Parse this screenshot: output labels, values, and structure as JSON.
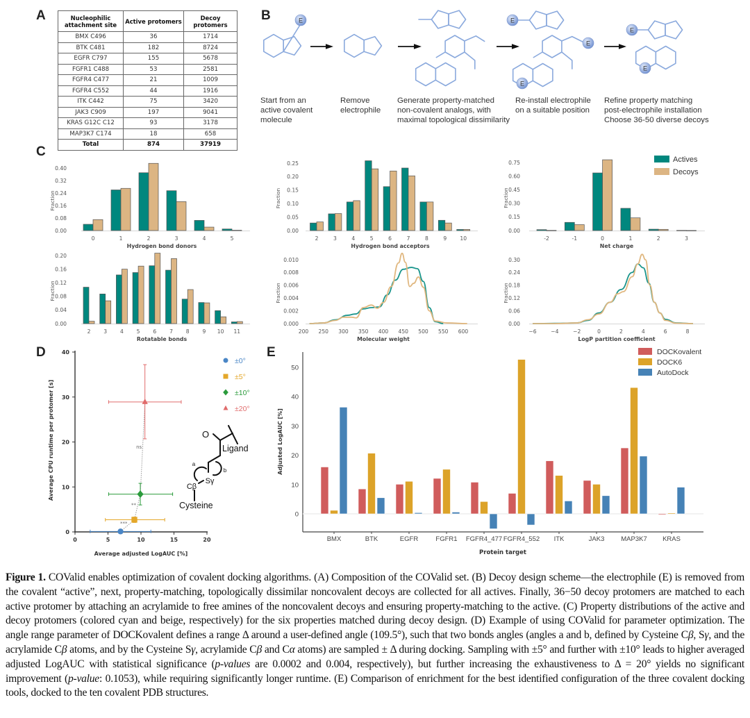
{
  "panel_labels": {
    "a": "A",
    "b": "B",
    "c": "C",
    "d": "D",
    "e": "E"
  },
  "table": {
    "headers": [
      "Nucleophilic attachment site",
      "Active protomers",
      "Decoy protomers"
    ],
    "rows": [
      [
        "BMX C496",
        "36",
        "1714"
      ],
      [
        "BTK C481",
        "182",
        "8724"
      ],
      [
        "EGFR C797",
        "155",
        "5678"
      ],
      [
        "FGFR1 C488",
        "53",
        "2581"
      ],
      [
        "FGFR4 C477",
        "21",
        "1009"
      ],
      [
        "FGFR4 C552",
        "44",
        "1916"
      ],
      [
        "ITK C442",
        "75",
        "3420"
      ],
      [
        "JAK3 C909",
        "197",
        "9041"
      ],
      [
        "KRAS G12C C12",
        "93",
        "3178"
      ],
      [
        "MAP3K7  C174",
        "18",
        "658"
      ]
    ],
    "total": [
      "Total",
      "874",
      "37919"
    ]
  },
  "scheme": {
    "ring_color": "#8aa9dd",
    "electrophile_label": "E",
    "steps": [
      [
        "Start from an",
        "active covalent",
        "molecule"
      ],
      [
        "Remove",
        "electrophile"
      ],
      [
        "Generate property-matched",
        "non-covalent analogs, with",
        "maximal topological dissimilarity"
      ],
      [
        "Re-install electrophile",
        "on a suitable position"
      ],
      [
        "Refine property matching",
        "post-electrophile installation",
        "Choose 36-50 diverse decoys"
      ]
    ]
  },
  "chart_data": [
    {
      "type": "bar",
      "xlabel": "Hydrogen bond donors",
      "ylabel": "Fraction",
      "categories": [
        "0",
        "1",
        "2",
        "3",
        "4",
        "5"
      ],
      "yticks": [
        "0.00",
        "0.08",
        "0.16",
        "0.24",
        "0.32",
        "0.40"
      ],
      "series": [
        {
          "name": "Actives",
          "color": "#00877e",
          "values": [
            0.04,
            0.26,
            0.37,
            0.255,
            0.065,
            0.01
          ]
        },
        {
          "name": "Decoys",
          "color": "#dcb583",
          "values": [
            0.07,
            0.27,
            0.43,
            0.185,
            0.022,
            0.002
          ]
        }
      ]
    },
    {
      "type": "bar",
      "xlabel": "Rotatable bonds",
      "ylabel": "Fraction",
      "categories": [
        "2",
        "3",
        "4",
        "5",
        "6",
        "7",
        "8",
        "9",
        "10",
        "11"
      ],
      "yticks": [
        "0.00",
        "0.04",
        "0.08",
        "0.12",
        "0.16",
        "0.20"
      ],
      "series": [
        {
          "name": "Actives",
          "color": "#00877e",
          "values": [
            0.107,
            0.087,
            0.143,
            0.15,
            0.17,
            0.157,
            0.072,
            0.062,
            0.038,
            0.005
          ]
        },
        {
          "name": "Decoys",
          "color": "#dcb583",
          "values": [
            0.007,
            0.067,
            0.16,
            0.169,
            0.207,
            0.191,
            0.1,
            0.061,
            0.02,
            0.006
          ]
        }
      ]
    },
    {
      "type": "bar",
      "xlabel": "Hydrogen bond acceptors",
      "ylabel": "Fraction",
      "categories": [
        "2",
        "3",
        "4",
        "5",
        "6",
        "7",
        "8",
        "9",
        "10"
      ],
      "yticks": [
        "0.00",
        "0.05",
        "0.10",
        "0.15",
        "0.20",
        "0.25"
      ],
      "series": [
        {
          "name": "Actives",
          "color": "#00877e",
          "values": [
            0.028,
            0.062,
            0.106,
            0.259,
            0.163,
            0.232,
            0.106,
            0.038,
            0.004
          ]
        },
        {
          "name": "Decoys",
          "color": "#dcb583",
          "values": [
            0.032,
            0.063,
            0.111,
            0.229,
            0.221,
            0.203,
            0.106,
            0.028,
            0.004
          ]
        }
      ]
    },
    {
      "type": "line",
      "xlabel": "Molecular weight",
      "ylabel": "Fraction",
      "xticks": [
        "200",
        "250",
        "300",
        "350",
        "400",
        "450",
        "500",
        "550",
        "600"
      ],
      "yticks": [
        "0.000",
        "0.002",
        "0.004",
        "0.006",
        "0.008",
        "0.010"
      ],
      "series": [
        {
          "name": "Actives",
          "color": "#1a958c",
          "points": [
            [
              215,
              0
            ],
            [
              250,
              0.0001
            ],
            [
              280,
              0.0006
            ],
            [
              310,
              0.0013
            ],
            [
              330,
              0.0015
            ],
            [
              350,
              0.0023
            ],
            [
              370,
              0.0025
            ],
            [
              390,
              0.0026
            ],
            [
              410,
              0.0045
            ],
            [
              430,
              0.0068
            ],
            [
              450,
              0.0085
            ],
            [
              470,
              0.0088
            ],
            [
              485,
              0.0086
            ],
            [
              500,
              0.0066
            ],
            [
              515,
              0.0025
            ],
            [
              530,
              0.0003
            ],
            [
              550,
              0
            ]
          ]
        },
        {
          "name": "Decoys",
          "color": "#e0b77f",
          "points": [
            [
              215,
              0
            ],
            [
              250,
              0.0001
            ],
            [
              280,
              0.0005
            ],
            [
              300,
              0.001
            ],
            [
              320,
              0.001
            ],
            [
              332,
              0.0009
            ],
            [
              350,
              0.0025
            ],
            [
              370,
              0.0029
            ],
            [
              385,
              0.0024
            ],
            [
              400,
              0.0033
            ],
            [
              420,
              0.0058
            ],
            [
              438,
              0.0095
            ],
            [
              447,
              0.011
            ],
            [
              455,
              0.0096
            ],
            [
              466,
              0.0058
            ],
            [
              476,
              0.0063
            ],
            [
              488,
              0.0073
            ],
            [
              500,
              0.0057
            ],
            [
              515,
              0.002
            ],
            [
              530,
              0.0004
            ],
            [
              560,
              0.0001
            ],
            [
              610,
              0
            ]
          ]
        }
      ]
    },
    {
      "type": "bar",
      "xlabel": "Net charge",
      "ylabel": "Fraction",
      "categories": [
        "-2",
        "-1",
        "0",
        "1",
        "2",
        "3"
      ],
      "yticks": [
        "0.00",
        "0.15",
        "0.30",
        "0.45",
        "0.60",
        "0.75"
      ],
      "legend": {
        "position": "top-right",
        "entries": [
          "Actives",
          "Decoys"
        ]
      },
      "series": [
        {
          "name": "Actives",
          "color": "#00877e",
          "values": [
            0.01,
            0.09,
            0.635,
            0.245,
            0.015,
            0.002
          ]
        },
        {
          "name": "Decoys",
          "color": "#dcb583",
          "values": [
            0.002,
            0.065,
            0.78,
            0.14,
            0.013,
            0.001
          ]
        }
      ]
    },
    {
      "type": "line",
      "xlabel": "LogP partition coefficient",
      "ylabel": "Fraction",
      "xticks": [
        "−6",
        "−4",
        "−2",
        "0",
        "2",
        "4",
        "6",
        "8"
      ],
      "yticks": [
        "0.00",
        "0.06",
        "0.12",
        "0.18",
        "0.24",
        "0.30"
      ],
      "series": [
        {
          "name": "Actives",
          "color": "#1a958c",
          "points": [
            [
              -6,
              0
            ],
            [
              -4,
              0.001
            ],
            [
              -2,
              0.003
            ],
            [
              -1,
              0.015
            ],
            [
              0,
              0.05
            ],
            [
              1,
              0.1
            ],
            [
              2,
              0.16
            ],
            [
              3,
              0.24
            ],
            [
              3.5,
              0.28
            ],
            [
              4,
              0.262
            ],
            [
              4.5,
              0.19
            ],
            [
              5,
              0.1
            ],
            [
              5.5,
              0.05
            ],
            [
              6,
              0.02
            ],
            [
              7,
              0.003
            ],
            [
              8.5,
              0
            ]
          ]
        },
        {
          "name": "Decoys",
          "color": "#e0b77f",
          "points": [
            [
              -6,
              0
            ],
            [
              -4,
              0
            ],
            [
              -2,
              0.003
            ],
            [
              -1,
              0.018
            ],
            [
              0,
              0.045
            ],
            [
              1,
              0.1
            ],
            [
              1.7,
              0.14
            ],
            [
              2.2,
              0.15
            ],
            [
              3,
              0.22
            ],
            [
              3.5,
              0.28
            ],
            [
              3.9,
              0.325
            ],
            [
              4.2,
              0.3
            ],
            [
              4.6,
              0.18
            ],
            [
              5,
              0.1
            ],
            [
              5.5,
              0.05
            ],
            [
              6,
              0.015
            ],
            [
              7,
              0.002
            ],
            [
              8.5,
              0
            ]
          ]
        }
      ]
    },
    {
      "type": "scatter",
      "xlabel": "Average adjusted LogAUC [%]",
      "ylabel": "Average CPU runtime per protomer [s]",
      "xlim": [
        0,
        20
      ],
      "ylim": [
        0,
        40
      ],
      "xticks": [
        "0",
        "5",
        "10",
        "15",
        "20"
      ],
      "yticks": [
        "0",
        "10",
        "20",
        "30",
        "40"
      ],
      "legend": {
        "position": "top-right"
      },
      "series": [
        {
          "name": "±0°",
          "color": "#4a86c6",
          "marker": "circle",
          "x": 6.9,
          "y": 0.1,
          "x_err": [
            2.3,
            11.5
          ],
          "y_err": [
            0,
            0.3
          ]
        },
        {
          "name": "±5°",
          "color": "#e4a72a",
          "marker": "square",
          "x": 9.0,
          "y": 2.7,
          "x_err": [
            4.6,
            13.6
          ],
          "y_err": [
            2.1,
            3.3
          ]
        },
        {
          "name": "±10°",
          "color": "#2b9b3c",
          "marker": "diamond",
          "x": 9.9,
          "y": 8.4,
          "x_err": [
            5.1,
            14.8
          ],
          "y_err": [
            6.0,
            10.8
          ]
        },
        {
          "name": "±20°",
          "color": "#e06b6b",
          "marker": "triangle",
          "x": 10.6,
          "y": 28.9,
          "x_err": [
            5.1,
            16.1
          ],
          "y_err": [
            20.7,
            37.2
          ]
        }
      ],
      "annotations": [
        {
          "text": "***",
          "x": 7.4,
          "y": 2.0
        },
        {
          "text": "**",
          "x": 8.9,
          "y": 6.1
        },
        {
          "text": "ns",
          "x": 9.7,
          "y": 19.0
        }
      ],
      "inset_labels": {
        "oxygen": "O",
        "ligand": "Ligand",
        "angle_a": "a",
        "angle_b": "b",
        "s_gamma": "Sγ",
        "c_beta": "Cβ",
        "cysteine": "Cysteine"
      }
    },
    {
      "type": "bar",
      "xlabel": "Protein target",
      "ylabel": "Adjusted LogAUC [%]",
      "categories": [
        "BMX",
        "BTK",
        "EGFR",
        "FGFR1",
        "FGFR4_477",
        "FGFR4_552",
        "ITK",
        "JAK3",
        "MAP3K7",
        "KRAS"
      ],
      "yticks": [
        "0",
        "10",
        "20",
        "30",
        "40",
        "50"
      ],
      "ylim": [
        -6,
        55
      ],
      "legend": {
        "position": "top-right",
        "entries": [
          "DOCKovalent",
          "DOCK6",
          "AutoDock"
        ]
      },
      "series": [
        {
          "name": "DOCKovalent",
          "color": "#d05c5c",
          "values": [
            16.0,
            8.5,
            10.1,
            12.1,
            10.8,
            7.0,
            18.1,
            11.4,
            22.5,
            -0.3
          ]
        },
        {
          "name": "DOCK6",
          "color": "#dca329",
          "values": [
            1.2,
            20.7,
            11.1,
            15.2,
            4.2,
            52.7,
            13.1,
            10.1,
            43.1,
            0.3
          ]
        },
        {
          "name": "AutoDock",
          "color": "#4682b6",
          "values": [
            36.4,
            5.5,
            0.4,
            0.6,
            -5.1,
            -3.8,
            4.4,
            6.2,
            19.7,
            9.1
          ]
        }
      ]
    }
  ],
  "caption": {
    "segments": [
      {
        "t": "Figure 1. ",
        "b": true
      },
      {
        "t": "COValid enables optimization of covalent docking algorithms. (A) Composition of the COValid set. (B) Decoy design scheme—the electrophile (E) is removed from the covalent “active”, next, property-matching, topologically dissimilar noncovalent decoys are collected for all actives. Finally, 36−50 decoy protomers are matched to each active protomer by attaching an acrylamide to free amines of the noncovalent decoys and ensuring property-matching to the active. (C) Property distributions of the active and decoy protomers (colored cyan and beige, respectively) for the six properties matched during decoy design. (D) Example of using COValid for parameter optimization. The angle range parameter of DOCKovalent defines a range Δ around a user-defined angle (109.5°), such that two bonds angles (angles a and b, defined by Cysteine C"
      },
      {
        "t": "β",
        "i": true
      },
      {
        "t": ", S"
      },
      {
        "t": "γ",
        "i": true
      },
      {
        "t": ", and the acrylamide C"
      },
      {
        "t": "β",
        "i": true
      },
      {
        "t": " atoms, and by the Cysteine S"
      },
      {
        "t": "γ",
        "i": true
      },
      {
        "t": ", acrylamide C"
      },
      {
        "t": "β",
        "i": true
      },
      {
        "t": " and C"
      },
      {
        "t": "α",
        "i": true
      },
      {
        "t": " atoms) are sampled ± Δ during docking. Sampling with ±5° and further with ±10° leads to higher averaged adjusted LogAUC with statistical significance ("
      },
      {
        "t": "p-values",
        "i": true
      },
      {
        "t": " are 0.0002 and 0.004, respectively), but further increasing the exhaustiveness to Δ = 20° yields no significant improvement ("
      },
      {
        "t": "p-value",
        "i": true
      },
      {
        "t": ": 0.1053), while requiring significantly longer runtime. (E) Comparison of enrichment for the best identified configuration of the three covalent docking tools, docked to the ten covalent PDB structures."
      }
    ]
  }
}
